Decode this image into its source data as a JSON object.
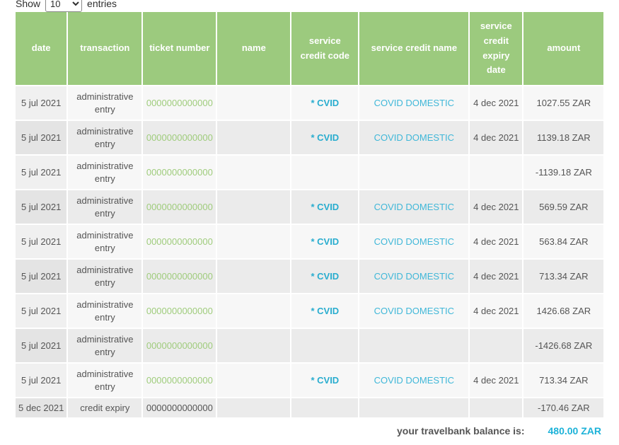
{
  "controls": {
    "show_label": "Show",
    "page_size": "10",
    "page_size_options": [
      "10"
    ],
    "entries_label": "entries"
  },
  "table": {
    "columns": [
      {
        "label": "date"
      },
      {
        "label": "transaction"
      },
      {
        "label": "ticket number"
      },
      {
        "label": "name"
      },
      {
        "label": "service credit code"
      },
      {
        "label": "service credit name"
      },
      {
        "label": "service credit expiry date"
      },
      {
        "label": "amount"
      }
    ],
    "rows": [
      {
        "date": "5 jul 2021",
        "transaction": "administrative entry",
        "ticket": "0000000000000",
        "name": "",
        "code": "* CVID",
        "credit_name": "COVID DOMESTIC",
        "expiry": "4 dec 2021",
        "amount": "1027.55 ZAR"
      },
      {
        "date": "5 jul 2021",
        "transaction": "administrative entry",
        "ticket": "0000000000000",
        "name": "",
        "code": "* CVID",
        "credit_name": "COVID DOMESTIC",
        "expiry": "4 dec 2021",
        "amount": "1139.18 ZAR"
      },
      {
        "date": "5 jul 2021",
        "transaction": "administrative entry",
        "ticket": "0000000000000",
        "name": "",
        "code": "",
        "credit_name": "",
        "expiry": "",
        "amount": "-1139.18 ZAR"
      },
      {
        "date": "5 jul 2021",
        "transaction": "administrative entry",
        "ticket": "0000000000000",
        "name": "",
        "code": "* CVID",
        "credit_name": "COVID DOMESTIC",
        "expiry": "4 dec 2021",
        "amount": "569.59 ZAR"
      },
      {
        "date": "5 jul 2021",
        "transaction": "administrative entry",
        "ticket": "0000000000000",
        "name": "",
        "code": "* CVID",
        "credit_name": "COVID DOMESTIC",
        "expiry": "4 dec 2021",
        "amount": "563.84 ZAR"
      },
      {
        "date": "5 jul 2021",
        "transaction": "administrative entry",
        "ticket": "0000000000000",
        "name": "",
        "code": "* CVID",
        "credit_name": "COVID DOMESTIC",
        "expiry": "4 dec 2021",
        "amount": "713.34 ZAR"
      },
      {
        "date": "5 jul 2021",
        "transaction": "administrative entry",
        "ticket": "0000000000000",
        "name": "",
        "code": "* CVID",
        "credit_name": "COVID DOMESTIC",
        "expiry": "4 dec 2021",
        "amount": "1426.68 ZAR"
      },
      {
        "date": "5 jul 2021",
        "transaction": "administrative entry",
        "ticket": "0000000000000",
        "name": "",
        "code": "",
        "credit_name": "",
        "expiry": "",
        "amount": "-1426.68 ZAR"
      },
      {
        "date": "5 jul 2021",
        "transaction": "administrative entry",
        "ticket": "0000000000000",
        "name": "",
        "code": "* CVID",
        "credit_name": "COVID DOMESTIC",
        "expiry": "4 dec 2021",
        "amount": "713.34 ZAR"
      },
      {
        "date": "5 dec 2021",
        "transaction": "credit expiry",
        "ticket": "0000000000000",
        "name": "",
        "code": "",
        "credit_name": "",
        "expiry": "",
        "amount": "-170.46 ZAR"
      }
    ]
  },
  "footer": {
    "balance_label": "your travelbank balance is:",
    "balance_value": "480.00 ZAR"
  },
  "colors": {
    "header_green": "#9cca7e",
    "ticket_link_green": "#9fcc7c",
    "service_code_cyan": "#29adcf",
    "service_name_cyan": "#3fb7d8",
    "balance_cyan": "#1cb2d8",
    "row_light": "#f7f7f7",
    "row_dark": "#ebebeb",
    "cell_text": "#555555"
  }
}
